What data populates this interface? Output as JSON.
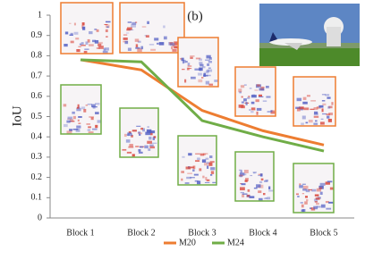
{
  "chart_data": {
    "type": "line",
    "annotation": "(b)",
    "y_label": "IoU",
    "categories": [
      "Block 1",
      "Block 2",
      "Block 3",
      "Block 4",
      "Block 5"
    ],
    "series": [
      {
        "name": "M20",
        "color": "#ed7d31",
        "values": [
          0.78,
          0.73,
          0.53,
          0.43,
          0.36
        ]
      },
      {
        "name": "M24",
        "color": "#70ad47",
        "values": [
          0.78,
          0.77,
          0.48,
          0.4,
          0.33
        ]
      }
    ],
    "ylim": [
      0,
      1
    ],
    "yticks": [
      0,
      0.1,
      0.2,
      0.3,
      0.4,
      0.5,
      0.6,
      0.7,
      0.8,
      0.9,
      1
    ],
    "grid": false,
    "legend": "bottom"
  }
}
